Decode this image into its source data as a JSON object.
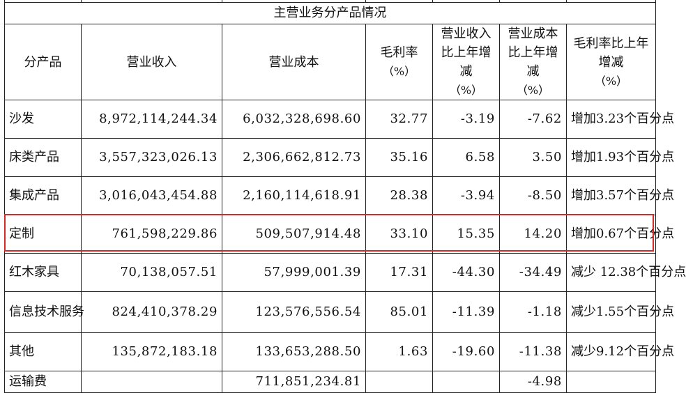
{
  "table": {
    "title": "主营业务分产品情况",
    "headers": {
      "product": "分产品",
      "revenue": "营业收入",
      "cost": "营业成本",
      "gross_margin": "毛利率",
      "gross_margin_unit": "（%）",
      "revenue_change": "营业收入比上年增减",
      "revenue_change_unit": "（%）",
      "cost_change": "营业成本比上年增减",
      "cost_change_unit": "（%）",
      "margin_change": "毛利率比上年增减",
      "margin_change_unit": "（%）"
    },
    "rows": [
      {
        "product": "沙发",
        "revenue": "8,972,114,244.34",
        "cost": "6,032,328,698.60",
        "gross_margin": "32.77",
        "revenue_change": "-3.19",
        "cost_change": "-7.62",
        "margin_change": "增加3.23个百分点"
      },
      {
        "product": "床类产品",
        "revenue": "3,557,323,026.13",
        "cost": "2,306,662,812.73",
        "gross_margin": "35.16",
        "revenue_change": "6.58",
        "cost_change": "3.50",
        "margin_change": "增加1.93个百分点"
      },
      {
        "product": "集成产品",
        "revenue": "3,016,043,454.88",
        "cost": "2,160,114,618.91",
        "gross_margin": "28.38",
        "revenue_change": "-3.94",
        "cost_change": "-8.50",
        "margin_change": "增加3.57个百分点"
      },
      {
        "product": "定制",
        "revenue": "761,598,229.86",
        "cost": "509,507,914.48",
        "gross_margin": "33.10",
        "revenue_change": "15.35",
        "cost_change": "14.20",
        "margin_change": "增加0.67个百分点",
        "highlighted": true
      },
      {
        "product": "红木家具",
        "revenue": "70,138,057.51",
        "cost": "57,999,001.39",
        "gross_margin": "17.31",
        "revenue_change": "-44.30",
        "cost_change": "-34.49",
        "margin_change": "减少 12.38个百分点"
      },
      {
        "product": "信息技术服务",
        "revenue": "824,410,378.29",
        "cost": "123,576,556.54",
        "gross_margin": "85.01",
        "revenue_change": "-11.39",
        "cost_change": "-1.18",
        "margin_change": "减少1.55个百分点"
      },
      {
        "product": "其他",
        "revenue": "135,872,183.18",
        "cost": "133,653,288.50",
        "gross_margin": "1.63",
        "revenue_change": "-19.60",
        "cost_change": "-11.38",
        "margin_change": "减少9.12个百分点"
      },
      {
        "product": "运输费",
        "revenue": "",
        "cost": "711,851,234.81",
        "gross_margin": "",
        "revenue_change": "",
        "cost_change": "-4.98",
        "margin_change": ""
      }
    ]
  },
  "colors": {
    "highlight_border": "#d42a2a",
    "grid_line": "#222222",
    "text": "#111111"
  }
}
